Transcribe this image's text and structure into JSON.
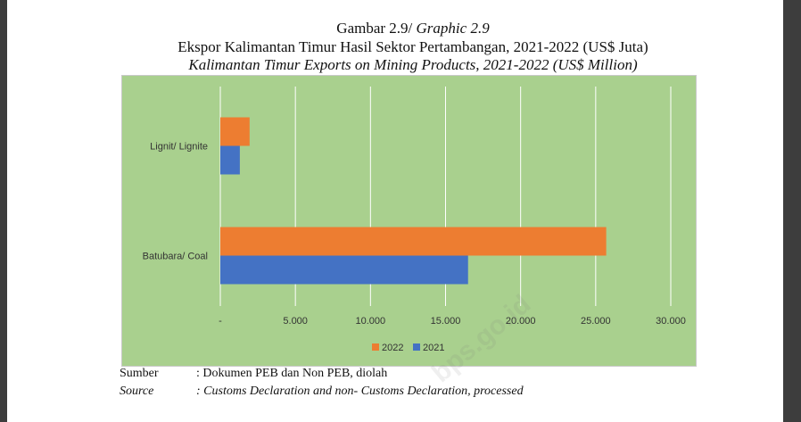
{
  "figure": {
    "label_id": "Gambar 2.9/ ",
    "label_en": "Graphic 2.9",
    "title_id": "Ekspor Kalimantan Timur Hasil Sektor Pertambangan, 2021-2022 (US$ Juta)",
    "title_en": "Kalimantan Timur Exports on Mining Products, 2021-2022 (US$ Million)"
  },
  "chart_data": {
    "type": "bar",
    "orientation": "horizontal",
    "categories": [
      "Lignit/ Lignite",
      "Batubara/ Coal"
    ],
    "series": [
      {
        "name": "2022",
        "color": "#ed7d31",
        "values": [
          1950,
          25700
        ]
      },
      {
        "name": "2021",
        "color": "#4472c4",
        "values": [
          1300,
          16500
        ]
      }
    ],
    "xlim": [
      0,
      30000
    ],
    "xticks": [
      0,
      5000,
      10000,
      15000,
      20000,
      25000,
      30000
    ],
    "xtick_labels": [
      "-",
      "5.000",
      "10.000",
      "15.000",
      "20.000",
      "25.000",
      "30.000"
    ],
    "grid": "vertical",
    "legend_position": "bottom",
    "background_color": "#a9d08e"
  },
  "source": {
    "label_id": "Sumber",
    "text_id": ": Dokumen PEB dan Non PEB, diolah",
    "label_en": "Source",
    "text_en": ": Customs Declaration and non- Customs Declaration, processed"
  },
  "watermark": "bps.go.id"
}
